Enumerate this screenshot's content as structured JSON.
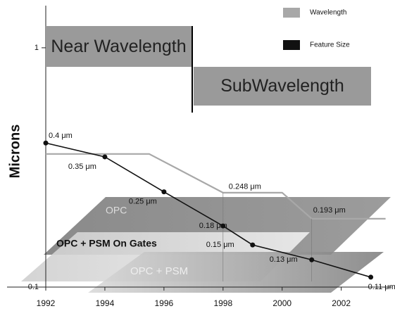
{
  "chart_data": {
    "type": "line",
    "y_label": "Microns",
    "log_y": true,
    "xlim": [
      1992,
      2003.7
    ],
    "xticks": [
      1992,
      1994,
      1996,
      1998,
      2000,
      2002
    ],
    "ylim": [
      0.1,
      1.5
    ],
    "yticks": [
      0.1,
      1
    ],
    "series": [
      {
        "name": "Wavelength",
        "color": "#a8a8a8",
        "x": [
          1992,
          1995.5,
          1998,
          2000,
          2001,
          2003.5
        ],
        "values": [
          0.36,
          0.36,
          0.248,
          0.248,
          0.193,
          0.193
        ],
        "value_labels": [
          null,
          null,
          "0.248 μm",
          null,
          "0.193 μm",
          null
        ]
      },
      {
        "name": "Feature Size",
        "color": "#111111",
        "x": [
          1992,
          1994,
          1996,
          1998,
          1999,
          2001,
          2003
        ],
        "values": [
          0.4,
          0.35,
          0.25,
          0.18,
          0.15,
          0.13,
          0.11
        ],
        "value_labels": [
          "0.4 μm",
          "0.35 μm",
          "0.25 μm",
          "0.18 μm",
          "0.15 μm",
          "0.13 μm",
          "0.11 μm"
        ]
      }
    ],
    "regions": [
      "Near Wavelength",
      "SubWavelength"
    ],
    "annotations": [
      "OPC",
      "OPC + PSM On Gates",
      "OPC + PSM"
    ]
  }
}
